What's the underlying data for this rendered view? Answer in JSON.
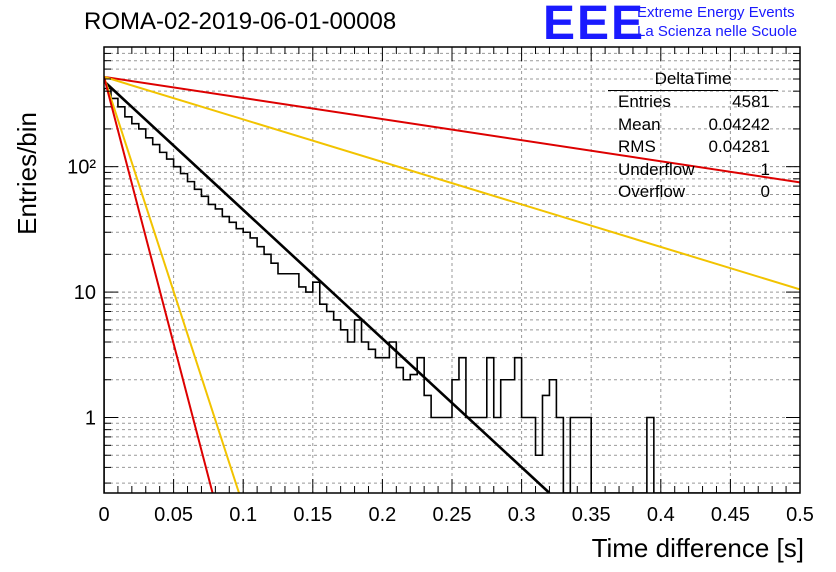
{
  "header": {
    "title": "ROMA-02-2019-06-01-00008",
    "logo": "EEE",
    "logo_line1": "Extreme Energy Events",
    "logo_line2": "La Scienza nelle Scuole"
  },
  "stats": {
    "title": "DeltaTime",
    "rows": [
      {
        "label": "Entries",
        "value": "4581"
      },
      {
        "label": "Mean",
        "value": "0.04242"
      },
      {
        "label": "RMS",
        "value": "0.04281"
      },
      {
        "label": "Underflow",
        "value": "1"
      },
      {
        "label": "Overflow",
        "value": "0"
      }
    ]
  },
  "chart_data": {
    "type": "bar",
    "title": "ROMA-02-2019-06-01-00008",
    "xlabel": "Time difference [s]",
    "ylabel": "Entries/bin",
    "xlim": [
      0,
      0.5
    ],
    "ylim": [
      0.25,
      900
    ],
    "yscale": "log",
    "grid": true,
    "x_ticks": [
      "0",
      "0.05",
      "0.1",
      "0.15",
      "0.2",
      "0.25",
      "0.3",
      "0.35",
      "0.4",
      "0.45",
      "0.5"
    ],
    "y_ticks": [
      "1",
      "10",
      "10²"
    ],
    "histogram": {
      "bin_width": 0.005,
      "counts": [
        420,
        350,
        300,
        250,
        220,
        200,
        170,
        150,
        130,
        115,
        100,
        88,
        76,
        66,
        58,
        50,
        46,
        40,
        36,
        32,
        30,
        27,
        23,
        20,
        17,
        14,
        14,
        14,
        11,
        10,
        12,
        8,
        7,
        6,
        5,
        4,
        6,
        4,
        3.5,
        3,
        3,
        4,
        2.5,
        2,
        2.2,
        3,
        1.5,
        1,
        1,
        1,
        2,
        3,
        1,
        1,
        1,
        3,
        1,
        2,
        2,
        3,
        1,
        1,
        0.5,
        1.5,
        2,
        1,
        0,
        1,
        1,
        1,
        0,
        0,
        0,
        0,
        0,
        0,
        0,
        0,
        1,
        0,
        0,
        0,
        0,
        0,
        0,
        0,
        0,
        0,
        0,
        0,
        0,
        0,
        0,
        0,
        0,
        0,
        0,
        0,
        0,
        0
      ]
    },
    "fit_lines": [
      {
        "color": "#000000",
        "points": [
          [
            0,
            480
          ],
          [
            0.32,
            0.25
          ]
        ]
      },
      {
        "color": "#dd0000",
        "points": [
          [
            0,
            520
          ],
          [
            0.5,
            75
          ]
        ]
      },
      {
        "color": "#f2c300",
        "points": [
          [
            0,
            520
          ],
          [
            0.5,
            10.5
          ]
        ]
      },
      {
        "color": "#f2c300",
        "points": [
          [
            0,
            520
          ],
          [
            0.097,
            0.25
          ]
        ]
      },
      {
        "color": "#dd0000",
        "points": [
          [
            0,
            520
          ],
          [
            0.078,
            0.25
          ]
        ]
      }
    ]
  }
}
